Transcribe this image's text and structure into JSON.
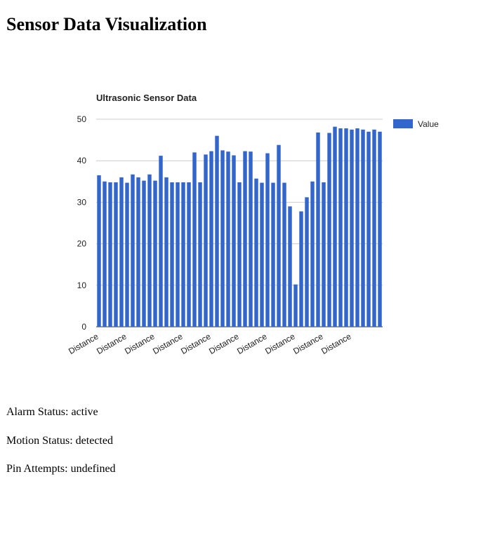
{
  "header": {
    "title": "Sensor Data Visualization"
  },
  "chart_data": {
    "type": "bar",
    "title": "Ultrasonic Sensor Data",
    "categories": [
      "Distance",
      null,
      null,
      null,
      null,
      "Distance",
      null,
      null,
      null,
      null,
      "Distance",
      null,
      null,
      null,
      null,
      "Distance",
      null,
      null,
      null,
      null,
      "Distance",
      null,
      null,
      null,
      null,
      "Distance",
      null,
      null,
      null,
      null,
      "Distance",
      null,
      null,
      null,
      null,
      "Distance",
      null,
      null,
      null,
      null,
      "Distance",
      null,
      null,
      null,
      null,
      "Distance",
      null,
      null,
      null,
      null,
      null
    ],
    "series": [
      {
        "name": "Value",
        "color": "#3366cc",
        "values": [
          36.5,
          35,
          34.8,
          34.8,
          36,
          34.7,
          36.7,
          36,
          35.2,
          36.7,
          35.2,
          41.2,
          36,
          34.8,
          34.8,
          34.8,
          34.8,
          42,
          34.8,
          41.5,
          42.3,
          46,
          42.5,
          42.2,
          41.3,
          34.8,
          42.3,
          42.2,
          35.7,
          34.7,
          41.8,
          34.7,
          43.8,
          34.7,
          29,
          10.2,
          27.8,
          31.2,
          35,
          46.8,
          34.8,
          46.7,
          48.2,
          47.8,
          47.8,
          47.5,
          47.8,
          47.5,
          47,
          47.5,
          47
        ]
      }
    ],
    "ylim": [
      0,
      50
    ],
    "yticks": [
      0,
      10,
      20,
      30,
      40,
      50
    ],
    "grid": true,
    "legend": "right"
  },
  "status": [
    "Alarm Status: active",
    "Motion Status: detected",
    "Pin Attempts: undefined"
  ]
}
